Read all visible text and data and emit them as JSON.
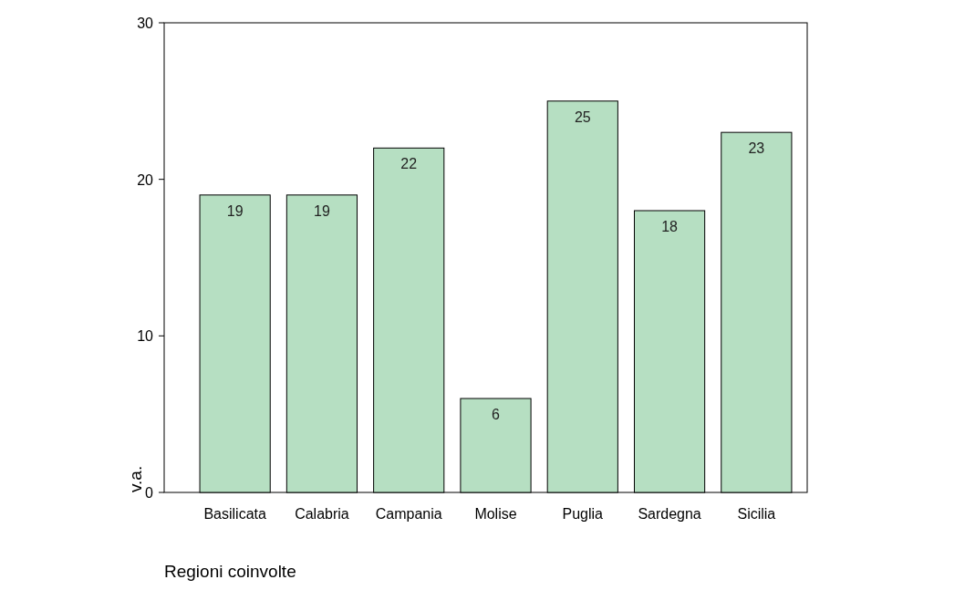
{
  "chart_data": {
    "type": "bar",
    "xlabel": "Regioni coinvolte",
    "ylabel": "v.a.",
    "categories": [
      "Basilicata",
      "Calabria",
      "Campania",
      "Molise",
      "Puglia",
      "Sardegna",
      "Sicilia"
    ],
    "values": [
      19,
      19,
      22,
      6,
      25,
      18,
      23
    ],
    "color": "#b6dfc2",
    "ylim": [
      0,
      30
    ],
    "yticks": [
      0,
      10,
      20,
      30
    ],
    "data_labels": true
  }
}
